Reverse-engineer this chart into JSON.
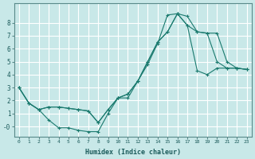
{
  "title": "",
  "xlabel": "Humidex (Indice chaleur)",
  "bg_color": "#c8e8e8",
  "grid_color": "#ffffff",
  "line_color": "#1a7a6e",
  "xlim": [
    -0.5,
    23.5
  ],
  "ylim": [
    -0.8,
    9.5
  ],
  "xticks": [
    0,
    1,
    2,
    3,
    4,
    5,
    6,
    7,
    8,
    9,
    10,
    11,
    12,
    13,
    14,
    15,
    16,
    17,
    18,
    19,
    20,
    21,
    22,
    23
  ],
  "yticks": [
    0,
    1,
    2,
    3,
    4,
    5,
    6,
    7,
    8
  ],
  "ytick_labels": [
    "-0",
    "1",
    "2",
    "3",
    "4",
    "5",
    "6",
    "7",
    "8"
  ],
  "line1_x": [
    0,
    1,
    2,
    3,
    4,
    5,
    6,
    7,
    8,
    9,
    10,
    11,
    12,
    13,
    14,
    15,
    16,
    17,
    18,
    19,
    20,
    21,
    22,
    23
  ],
  "line1_y": [
    3.0,
    1.8,
    1.3,
    0.5,
    -0.1,
    -0.1,
    -0.3,
    -0.4,
    -0.4,
    1.0,
    2.2,
    2.2,
    3.5,
    4.8,
    6.4,
    8.6,
    8.7,
    8.5,
    7.3,
    7.2,
    5.0,
    4.5,
    4.5,
    4.4
  ],
  "line2_x": [
    0,
    1,
    2,
    3,
    4,
    5,
    6,
    7,
    8,
    9,
    10,
    11,
    12,
    13,
    14,
    15,
    16,
    17,
    18,
    19,
    20,
    21,
    22,
    23
  ],
  "line2_y": [
    3.0,
    1.8,
    1.3,
    1.5,
    1.5,
    1.4,
    1.3,
    1.2,
    0.3,
    1.3,
    2.2,
    2.5,
    3.5,
    5.0,
    6.5,
    7.3,
    8.7,
    7.8,
    7.3,
    7.2,
    7.2,
    5.0,
    4.5,
    4.4
  ],
  "line3_x": [
    0,
    1,
    2,
    3,
    4,
    5,
    6,
    7,
    8,
    9,
    10,
    11,
    12,
    13,
    14,
    15,
    16,
    17,
    18,
    19,
    20,
    21,
    22,
    23
  ],
  "line3_y": [
    3.0,
    1.8,
    1.3,
    1.5,
    1.5,
    1.4,
    1.3,
    1.2,
    0.3,
    1.3,
    2.2,
    2.5,
    3.5,
    5.0,
    6.5,
    7.3,
    8.7,
    7.8,
    4.3,
    4.0,
    4.5,
    4.5,
    4.5,
    4.4
  ]
}
